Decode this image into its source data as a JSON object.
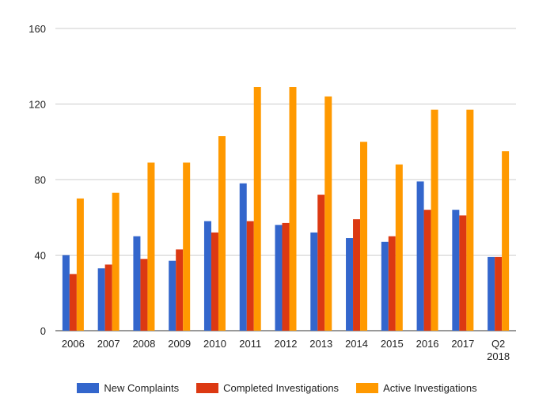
{
  "chart_data": {
    "type": "bar",
    "categories": [
      "2006",
      "2007",
      "2008",
      "2009",
      "2010",
      "2011",
      "2012",
      "2013",
      "2014",
      "2015",
      "2016",
      "2017",
      "Q2 2018"
    ],
    "series": [
      {
        "name": "New Complaints",
        "color": "#3366cc",
        "values": [
          40,
          33,
          50,
          37,
          58,
          78,
          56,
          52,
          49,
          47,
          79,
          64,
          39
        ]
      },
      {
        "name": "Completed Investigations",
        "color": "#dc3912",
        "values": [
          30,
          35,
          38,
          43,
          52,
          58,
          57,
          72,
          59,
          50,
          64,
          61,
          39
        ]
      },
      {
        "name": "Active Investigations",
        "color": "#ff9900",
        "values": [
          70,
          73,
          89,
          89,
          103,
          129,
          129,
          124,
          100,
          88,
          117,
          117,
          95
        ]
      }
    ],
    "ylim": [
      0,
      160
    ],
    "yticks": [
      0,
      40,
      80,
      120,
      160
    ],
    "grid": true,
    "legend_position": "bottom"
  }
}
